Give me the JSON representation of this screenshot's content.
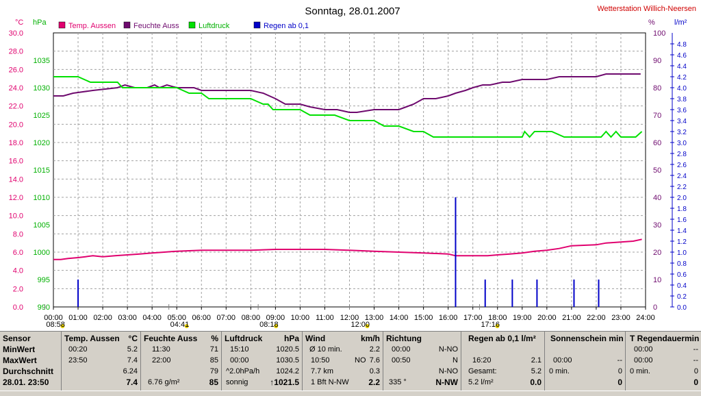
{
  "window": {
    "title": "Sonntag, 28.01.2007",
    "station": "Wetterstation Willich-Neersen"
  },
  "colors": {
    "temperature": "#e0006e",
    "humidity": "#6e0a6e",
    "pressure": "#00e000",
    "rain": "#0000c8",
    "grid": "#a0a0a0"
  },
  "legend": [
    {
      "label": "Temp. Aussen",
      "color": "#e0006e"
    },
    {
      "label": "Feuchte Auss",
      "color": "#6e0a6e"
    },
    {
      "label": "Luftdruck",
      "color": "#00e000"
    },
    {
      "label": "Regen ab 0,1",
      "color": "#0000c8"
    }
  ],
  "chart_data": {
    "type": "line",
    "title": "Sonntag, 28.01.2007",
    "x_ticks": [
      "00:00",
      "01:00",
      "02:00",
      "03:00",
      "04:00",
      "05:00",
      "06:00",
      "07:00",
      "08:00",
      "09:00",
      "10:00",
      "11:00",
      "12:00",
      "13:00",
      "14:00",
      "15:00",
      "16:00",
      "17:00",
      "18:00",
      "19:00",
      "20:00",
      "21:00",
      "22:00",
      "23:00",
      "24:00"
    ],
    "axes": {
      "temp": {
        "unit": "°C",
        "range": [
          0,
          30
        ],
        "ticks": [
          "0.0",
          "2.0",
          "4.0",
          "6.0",
          "8.0",
          "10.0",
          "12.0",
          "14.0",
          "16.0",
          "18.0",
          "20.0",
          "22.0",
          "24.0",
          "26.0",
          "28.0",
          "30.0"
        ]
      },
      "pressure": {
        "unit": "hPa",
        "range": [
          990,
          1040
        ],
        "ticks": [
          "990",
          "995",
          "1000",
          "1005",
          "1010",
          "1015",
          "1020",
          "1025",
          "1030",
          "1035"
        ]
      },
      "humidity": {
        "unit": "%",
        "range": [
          0,
          100
        ],
        "ticks": [
          "0",
          "10",
          "20",
          "30",
          "40",
          "50",
          "60",
          "70",
          "80",
          "90",
          "100"
        ]
      },
      "rain": {
        "unit": "l/m²",
        "range": [
          0,
          5
        ],
        "ticks": [
          "0.0",
          "0.2",
          "0.4",
          "0.6",
          "0.8",
          "1.0",
          "1.2",
          "1.4",
          "1.6",
          "1.8",
          "2.0",
          "2.2",
          "2.4",
          "2.6",
          "2.8",
          "3.0",
          "3.2",
          "3.4",
          "3.6",
          "3.8",
          "4.0",
          "4.2",
          "4.4",
          "4.6",
          "4.8"
        ]
      }
    },
    "series": [
      {
        "name": "Temp. Aussen",
        "axis": "temp",
        "x": [
          0,
          0.3,
          0.6,
          1.0,
          1.3,
          1.6,
          2.0,
          2.5,
          3.0,
          3.5,
          4.0,
          4.5,
          5.0,
          6.0,
          7.0,
          8.0,
          9.0,
          10.0,
          11.0,
          12.0,
          13.0,
          14.0,
          15.0,
          16.0,
          16.3,
          17.0,
          17.6,
          18.0,
          18.5,
          19.0,
          19.5,
          20.0,
          20.5,
          21.0,
          22.0,
          22.4,
          23.0,
          23.5,
          23.85
        ],
        "values": [
          5.2,
          5.2,
          5.3,
          5.4,
          5.5,
          5.6,
          5.5,
          5.6,
          5.7,
          5.8,
          5.9,
          6.0,
          6.1,
          6.2,
          6.2,
          6.2,
          6.3,
          6.3,
          6.3,
          6.2,
          6.1,
          6.0,
          5.9,
          5.8,
          5.6,
          5.6,
          5.6,
          5.7,
          5.8,
          5.9,
          6.1,
          6.2,
          6.4,
          6.7,
          6.8,
          7.0,
          7.1,
          7.2,
          7.4
        ]
      },
      {
        "name": "Feuchte Auss",
        "axis": "humidity",
        "x": [
          0,
          0.4,
          0.8,
          1.6,
          2.6,
          2.9,
          3.3,
          3.8,
          4.1,
          4.3,
          4.6,
          5.0,
          5.7,
          6.0,
          7.0,
          8.0,
          8.5,
          9.0,
          9.4,
          10.0,
          10.4,
          11.0,
          11.5,
          12.0,
          12.3,
          13.0,
          14.0,
          14.3,
          14.6,
          15.0,
          15.5,
          16.0,
          16.3,
          16.7,
          17.0,
          17.4,
          17.7,
          18.2,
          18.5,
          19.0,
          19.5,
          20.0,
          20.5,
          21.0,
          21.5,
          22.0,
          22.4,
          23.0,
          23.8
        ],
        "values": [
          77,
          77,
          78,
          79,
          80,
          81,
          80,
          80,
          81,
          80,
          81,
          80,
          80,
          79,
          79,
          79,
          78,
          76,
          74,
          74,
          73,
          72,
          72,
          71,
          71,
          72,
          72,
          73,
          74,
          76,
          76,
          77,
          78,
          79,
          80,
          81,
          81,
          82,
          82,
          83,
          83,
          83,
          84,
          84,
          84,
          84,
          85,
          85,
          85
        ]
      },
      {
        "name": "Luftdruck",
        "axis": "pressure",
        "x": [
          0,
          0.5,
          1.0,
          1.5,
          2.0,
          2.6,
          2.8,
          3.0,
          4.0,
          5.0,
          5.5,
          6.0,
          6.3,
          7.0,
          8.0,
          8.5,
          8.7,
          8.9,
          9.2,
          10.0,
          10.4,
          11.0,
          11.4,
          12.0,
          12.4,
          13.0,
          13.4,
          14.0,
          14.6,
          15.0,
          15.4,
          16.0,
          17.0,
          18.0,
          19.0,
          19.1,
          19.3,
          19.5,
          20.0,
          20.2,
          20.7,
          21.0,
          22.0,
          22.2,
          22.4,
          22.6,
          22.8,
          23.0,
          23.6,
          23.85
        ],
        "values": [
          1032,
          1032,
          1032,
          1031,
          1031,
          1031,
          1030,
          1030,
          1030,
          1030,
          1029,
          1029,
          1028,
          1028,
          1028,
          1027,
          1027,
          1026,
          1026,
          1026,
          1025,
          1025,
          1025,
          1024,
          1024,
          1024,
          1023,
          1023,
          1022,
          1022,
          1021,
          1021,
          1021,
          1021,
          1021,
          1022,
          1021,
          1022,
          1022,
          1022,
          1021,
          1021,
          1021,
          1021,
          1022,
          1021,
          1022,
          1021,
          1021,
          1022
        ]
      },
      {
        "name": "Regen ab 0,1",
        "axis": "rain",
        "type": "bar",
        "x": [
          1.0,
          16.3,
          17.5,
          18.6,
          19.6,
          21.1,
          22.1
        ],
        "values": [
          0.5,
          2.0,
          0.5,
          0.5,
          0.5,
          0.5,
          0.5
        ]
      }
    ],
    "markers": [
      {
        "label": "08:58",
        "x": -0.35,
        "color": "#e8d000"
      },
      {
        "label": "04:41",
        "x": 4.68,
        "color": "#e8d000"
      },
      {
        "label": "08:18",
        "x": 8.3,
        "color": "#e8d000"
      },
      {
        "label": "12:00",
        "x": 12.0,
        "color": "#e8d000"
      },
      {
        "label": "17:16",
        "x": 17.27,
        "color": "#e8d000"
      }
    ]
  },
  "panel": {
    "sensor": {
      "header": "Sensor",
      "min": "MinWert",
      "max": "MaxWert",
      "avg": "Durchschnitt",
      "now": "28.01. 23:50"
    },
    "temp": {
      "header": "Temp. Aussen",
      "unit": "°C",
      "min_time": "00:20",
      "min_val": "5.2",
      "max_time": "23:50",
      "max_val": "7.4",
      "avg": "6.24",
      "now": "7.4"
    },
    "hum": {
      "header": "Feuchte Auss",
      "unit": "%",
      "min_time": "11:30",
      "min_val": "71",
      "max_time": "22:00",
      "max_val": "85",
      "avg": "79",
      "abs": "6.76 g/m²",
      "now": "85"
    },
    "press": {
      "header": "Luftdruck",
      "unit": "hPa",
      "min_time": "15:10",
      "min_val": "1020.5",
      "max_time": "00:00",
      "max_val": "1030.5",
      "trend_label": "^2.0hPa/h",
      "trend_val": "1024.2",
      "forecast": "sonnig",
      "now": "↑1021.5"
    },
    "wind": {
      "header": "Wind",
      "unit": "km/h",
      "avg_label": "Ø 10 min.",
      "avg_val": "2.2",
      "gust_time": "10:50",
      "gust_dir": "NO",
      "gust_val": "7.6",
      "dist": "7.7 km",
      "dist_val": "0.3",
      "bft": "1 Bft N-NW",
      "now": "2.2"
    },
    "dir": {
      "header": "Richtung",
      "t1": "00:00",
      "v1": "N-NO",
      "t2": "00:50",
      "v2": "N",
      "v3": "N-NO",
      "deg": "335 °",
      "now": "N-NW"
    },
    "rain": {
      "header": "Regen ab 0,1 l/m²",
      "time": "16:20",
      "val": "2.1",
      "total_label": "Gesamt:",
      "total": "5.2",
      "hourly": "5.2 l/m²",
      "now": "0.0"
    },
    "sun": {
      "header": "Sonnenschein min",
      "t1": "00:00",
      "v1": "--",
      "min": "0 min.",
      "v2": "0",
      "now": "0"
    },
    "rdur": {
      "header": "T Regendauermin",
      "t1": "00:00",
      "v1": "--",
      "t2": "00:00",
      "v2": "--",
      "min": "0 min.",
      "v3": "0",
      "now": "0"
    }
  }
}
